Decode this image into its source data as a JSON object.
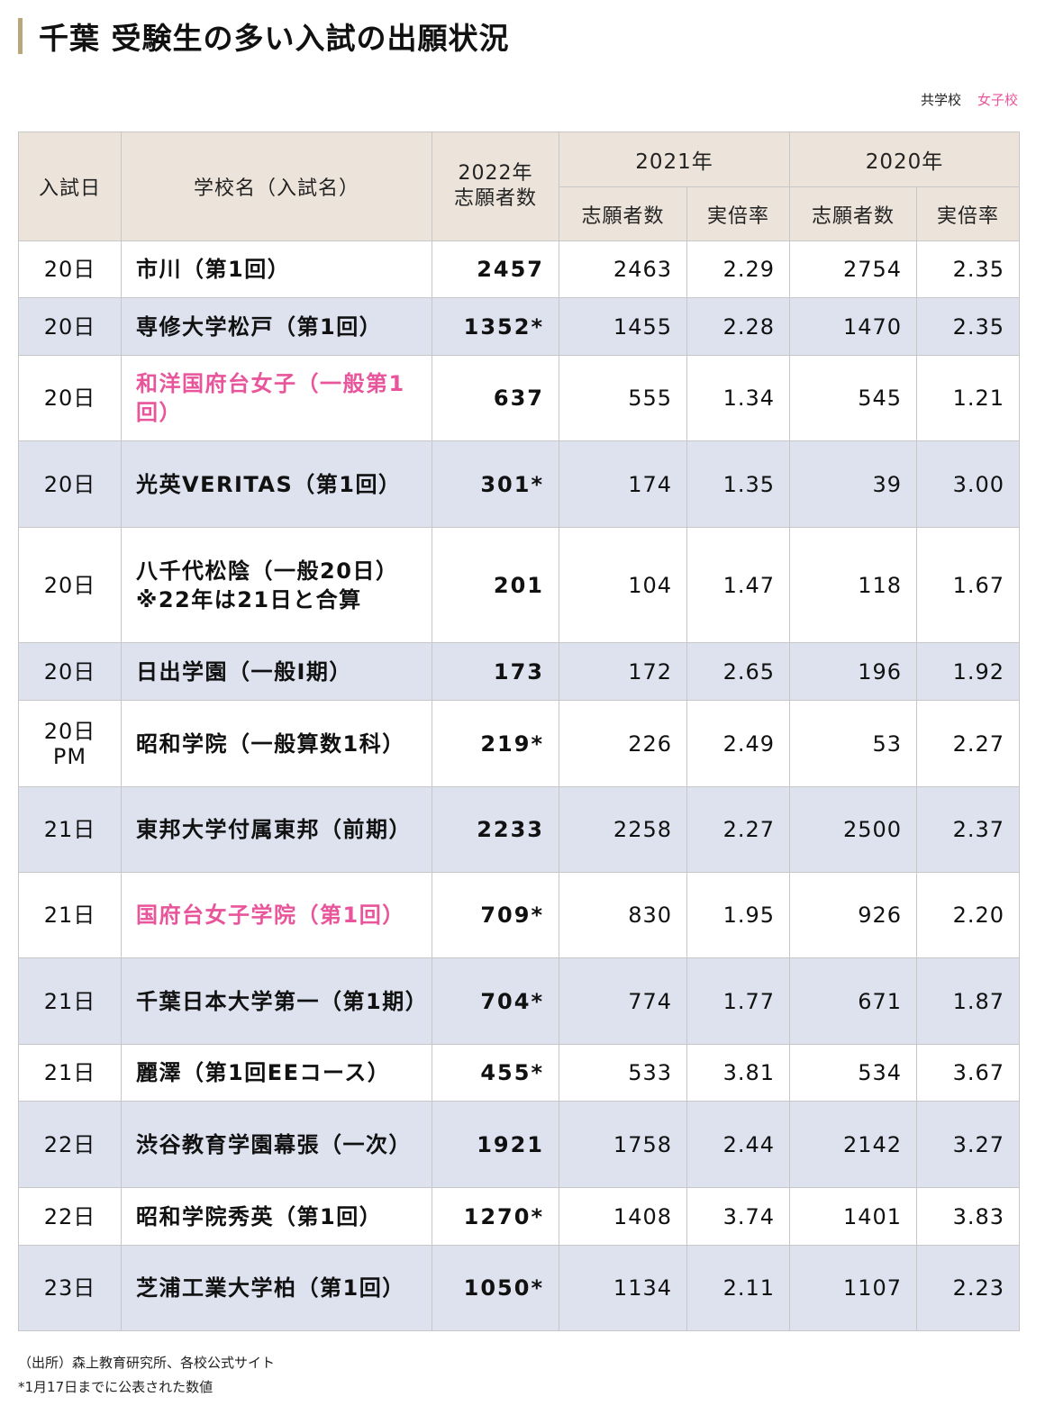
{
  "title": "千葉 受験生の多い入試の出願状況",
  "legend": {
    "coed": "共学校",
    "girls": "女子校"
  },
  "header": {
    "date": "入試日",
    "school": "学校名（入試名）",
    "y2022_line1": "2022年",
    "y2022_line2": "志願者数",
    "y2021": "2021年",
    "y2020": "2020年",
    "applicants": "志願者数",
    "ratio": "実倍率"
  },
  "rows": [
    {
      "date": "20日",
      "date2": "",
      "school": "市川（第1回）",
      "girls": false,
      "v2022": "2457",
      "a2021": "2463",
      "r2021": "2.29",
      "a2020": "2754",
      "r2020": "2.35"
    },
    {
      "date": "20日",
      "date2": "",
      "school": "専修大学松戸（第1回）",
      "girls": false,
      "v2022": "1352*",
      "a2021": "1455",
      "r2021": "2.28",
      "a2020": "1470",
      "r2020": "2.35"
    },
    {
      "date": "20日",
      "date2": "",
      "school": "和洋国府台女子（一般第1回）",
      "girls": true,
      "v2022": "637",
      "a2021": "555",
      "r2021": "1.34",
      "a2020": "545",
      "r2020": "1.21"
    },
    {
      "date": "20日",
      "date2": "",
      "school": "光英VERITAS（第1回）",
      "girls": false,
      "v2022": "301*",
      "a2021": "174",
      "r2021": "1.35",
      "a2020": "39",
      "r2020": "3.00"
    },
    {
      "date": "20日",
      "date2": "",
      "school": "八千代松陰（一般20日）※22年は21日と合算",
      "girls": false,
      "v2022": "201",
      "a2021": "104",
      "r2021": "1.47",
      "a2020": "118",
      "r2020": "1.67"
    },
    {
      "date": "20日",
      "date2": "",
      "school": "日出学園（一般Ⅰ期）",
      "girls": false,
      "v2022": "173",
      "a2021": "172",
      "r2021": "2.65",
      "a2020": "196",
      "r2020": "1.92"
    },
    {
      "date": "20日",
      "date2": "PM",
      "school": "昭和学院（一般算数1科）",
      "girls": false,
      "v2022": "219*",
      "a2021": "226",
      "r2021": "2.49",
      "a2020": "53",
      "r2020": "2.27"
    },
    {
      "date": "21日",
      "date2": "",
      "school": "東邦大学付属東邦（前期）",
      "girls": false,
      "v2022": "2233",
      "a2021": "2258",
      "r2021": "2.27",
      "a2020": "2500",
      "r2020": "2.37"
    },
    {
      "date": "21日",
      "date2": "",
      "school": "国府台女子学院（第1回）",
      "girls": true,
      "v2022": "709*",
      "a2021": "830",
      "r2021": "1.95",
      "a2020": "926",
      "r2020": "2.20"
    },
    {
      "date": "21日",
      "date2": "",
      "school": "千葉日本大学第一（第1期）",
      "girls": false,
      "v2022": "704*",
      "a2021": "774",
      "r2021": "1.77",
      "a2020": "671",
      "r2020": "1.87"
    },
    {
      "date": "21日",
      "date2": "",
      "school": "麗澤（第1回EEコース）",
      "girls": false,
      "v2022": "455*",
      "a2021": "533",
      "r2021": "3.81",
      "a2020": "534",
      "r2020": "3.67"
    },
    {
      "date": "22日",
      "date2": "",
      "school": "渋谷教育学園幕張（一次）",
      "girls": false,
      "v2022": "1921",
      "a2021": "1758",
      "r2021": "2.44",
      "a2020": "2142",
      "r2020": "3.27"
    },
    {
      "date": "22日",
      "date2": "",
      "school": "昭和学院秀英（第1回）",
      "girls": false,
      "v2022": "1270*",
      "a2021": "1408",
      "r2021": "3.74",
      "a2020": "1401",
      "r2020": "3.83"
    },
    {
      "date": "23日",
      "date2": "",
      "school": "芝浦工業大学柏（第1回）",
      "girls": false,
      "v2022": "1050*",
      "a2021": "1134",
      "r2021": "2.11",
      "a2020": "1107",
      "r2020": "2.23"
    }
  ],
  "notes": {
    "source": "（出所）森上教育研究所、各校公式サイト",
    "footnote": "*1月17日までに公表された数値"
  }
}
